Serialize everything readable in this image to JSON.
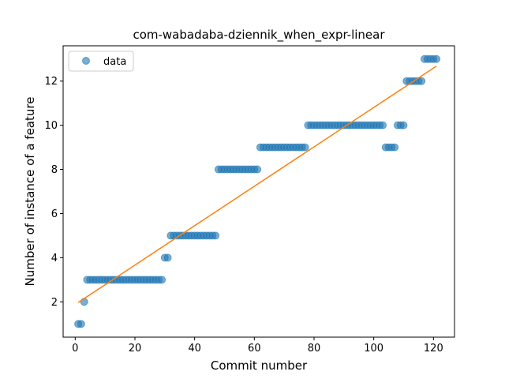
{
  "chart_data": {
    "type": "scatter",
    "title": "com-wabadaba-dziennik_when_expr-linear",
    "xlabel": "Commit number",
    "ylabel": "Number of instance of a feature",
    "xlim": [
      -4.05,
      127.05
    ],
    "ylim": [
      0.4,
      13.6
    ],
    "xticks": [
      0,
      20,
      40,
      60,
      80,
      100,
      120
    ],
    "yticks": [
      2,
      4,
      6,
      8,
      10,
      12
    ],
    "grid": false,
    "legend": {
      "position": "top-left",
      "entries": [
        "data"
      ]
    },
    "series": [
      {
        "name": "data",
        "kind": "scatter",
        "color": "#1f77b4",
        "x": [
          1,
          2,
          3,
          4,
          5,
          6,
          7,
          8,
          9,
          10,
          11,
          12,
          13,
          14,
          15,
          16,
          17,
          18,
          19,
          20,
          21,
          22,
          23,
          24,
          25,
          26,
          27,
          28,
          29,
          30,
          31,
          32,
          33,
          34,
          35,
          36,
          37,
          38,
          39,
          40,
          41,
          42,
          43,
          44,
          45,
          46,
          47,
          48,
          49,
          50,
          51,
          52,
          53,
          54,
          55,
          56,
          57,
          58,
          59,
          60,
          61,
          62,
          63,
          64,
          65,
          66,
          67,
          68,
          69,
          70,
          71,
          72,
          73,
          74,
          75,
          76,
          77,
          78,
          79,
          80,
          81,
          82,
          83,
          84,
          85,
          86,
          87,
          88,
          89,
          90,
          91,
          92,
          93,
          94,
          95,
          96,
          97,
          98,
          99,
          100,
          101,
          102,
          103,
          104,
          105,
          106,
          107,
          108,
          109,
          110,
          111,
          112,
          113,
          114,
          115,
          116,
          117,
          118,
          119,
          120,
          121
        ],
        "y": [
          1,
          1,
          2,
          3,
          3,
          3,
          3,
          3,
          3,
          3,
          3,
          3,
          3,
          3,
          3,
          3,
          3,
          3,
          3,
          3,
          3,
          3,
          3,
          3,
          3,
          3,
          3,
          3,
          3,
          4,
          4,
          5,
          5,
          5,
          5,
          5,
          5,
          5,
          5,
          5,
          5,
          5,
          5,
          5,
          5,
          5,
          5,
          8,
          8,
          8,
          8,
          8,
          8,
          8,
          8,
          8,
          8,
          8,
          8,
          8,
          8,
          9,
          9,
          9,
          9,
          9,
          9,
          9,
          9,
          9,
          9,
          9,
          9,
          9,
          9,
          9,
          9,
          10,
          10,
          10,
          10,
          10,
          10,
          10,
          10,
          10,
          10,
          10,
          10,
          10,
          10,
          10,
          10,
          10,
          10,
          10,
          10,
          10,
          10,
          10,
          10,
          10,
          10,
          9,
          9,
          9,
          9,
          10,
          10,
          10,
          12,
          12,
          12,
          12,
          12,
          12,
          13,
          13,
          13,
          13,
          13
        ]
      },
      {
        "kind": "line",
        "color": "#ff7f0e",
        "x": [
          1,
          121
        ],
        "y": [
          1.97,
          12.68
        ]
      }
    ]
  }
}
